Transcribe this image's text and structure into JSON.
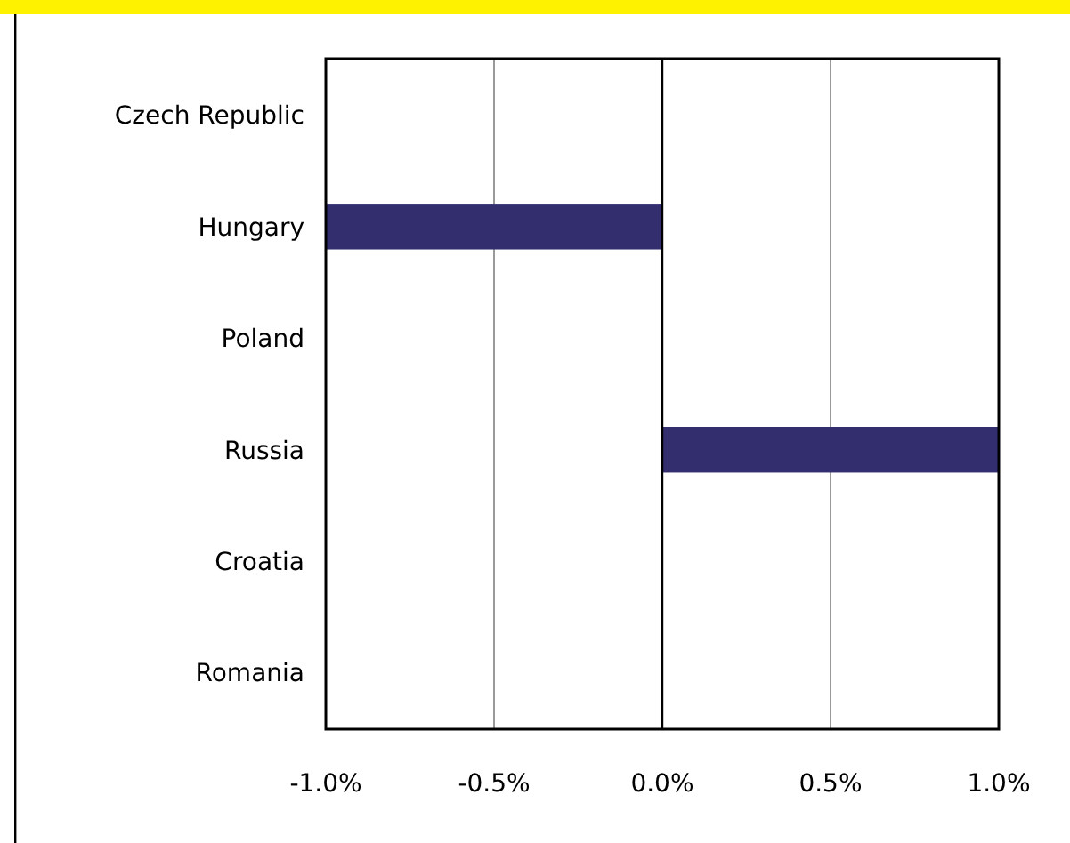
{
  "chart_data": {
    "type": "bar",
    "orientation": "horizontal",
    "categories": [
      "Czech Republic",
      "Hungary",
      "Poland",
      "Russia",
      "Croatia",
      "Romania"
    ],
    "values": [
      0,
      -1.0,
      0,
      1.0,
      0,
      0
    ],
    "color": "#332f6e",
    "xlim": [
      -1.0,
      1.0
    ],
    "xticks": [
      {
        "value": -1.0,
        "label": "-1.0%"
      },
      {
        "value": -0.5,
        "label": "-0.5%"
      },
      {
        "value": 0,
        "label": "0.0%"
      },
      {
        "value": 0.5,
        "label": "0.5%"
      },
      {
        "value": 1.0,
        "label": "1.0%"
      }
    ],
    "grid": "x"
  }
}
